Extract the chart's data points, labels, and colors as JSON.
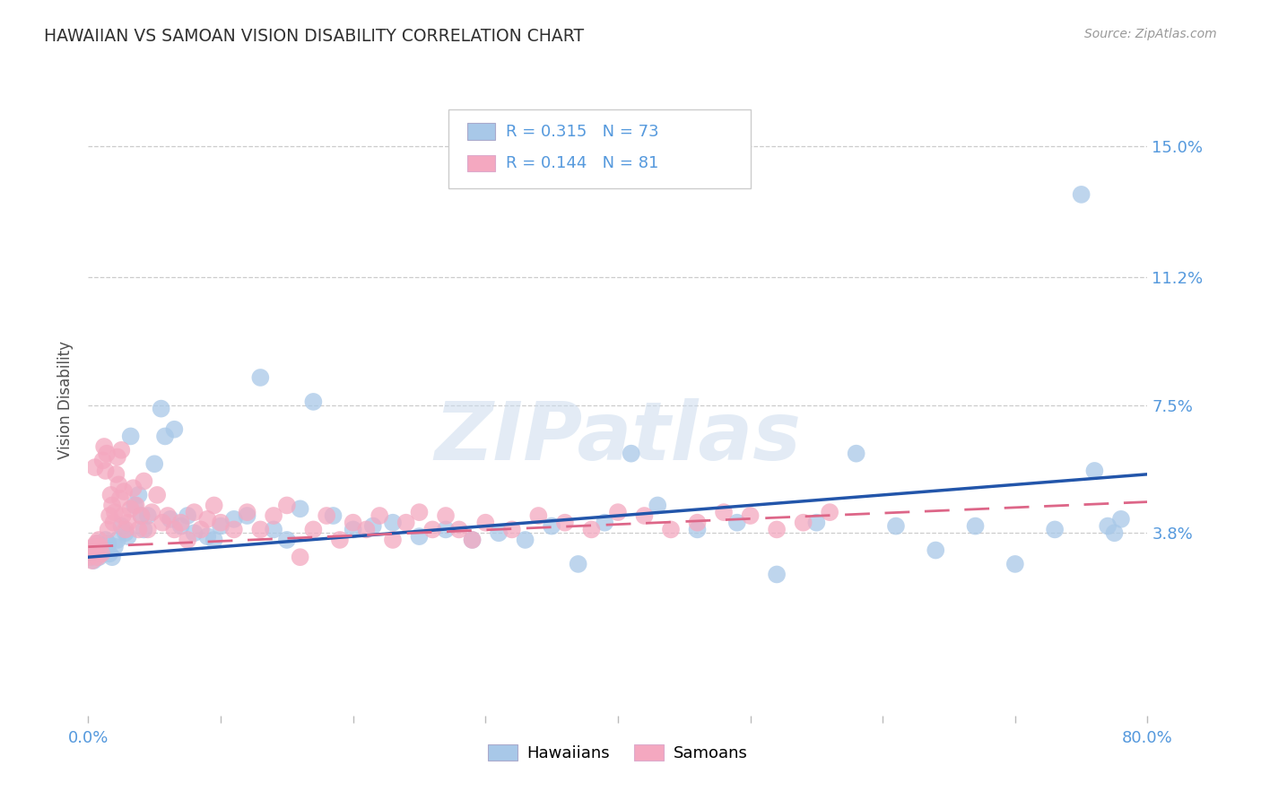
{
  "title": "HAWAIIAN VS SAMOAN VISION DISABILITY CORRELATION CHART",
  "source": "Source: ZipAtlas.com",
  "ylabel": "Vision Disability",
  "watermark": "ZIPatlas",
  "xlim": [
    0.0,
    0.8
  ],
  "ylim": [
    -0.015,
    0.168
  ],
  "xticks": [
    0.0,
    0.1,
    0.2,
    0.3,
    0.4,
    0.5,
    0.6,
    0.7,
    0.8
  ],
  "xticklabels": [
    "0.0%",
    "",
    "",
    "",
    "",
    "",
    "",
    "",
    "80.0%"
  ],
  "ytick_values": [
    0.038,
    0.075,
    0.112,
    0.15
  ],
  "ytick_labels": [
    "3.8%",
    "7.5%",
    "11.2%",
    "15.0%"
  ],
  "hawaiian_R": 0.315,
  "hawaiian_N": 73,
  "samoan_R": 0.144,
  "samoan_N": 81,
  "hawaiian_color": "#a8c8e8",
  "samoan_color": "#f4a8c0",
  "hawaiian_line_color": "#2255aa",
  "samoan_line_color": "#dd6688",
  "tick_color": "#5599dd",
  "title_color": "#303030",
  "grid_color": "#cccccc",
  "hawaiian_x": [
    0.002,
    0.003,
    0.004,
    0.005,
    0.006,
    0.007,
    0.008,
    0.009,
    0.01,
    0.011,
    0.012,
    0.013,
    0.015,
    0.016,
    0.018,
    0.02,
    0.022,
    0.025,
    0.028,
    0.03,
    0.032,
    0.035,
    0.038,
    0.04,
    0.042,
    0.045,
    0.05,
    0.055,
    0.058,
    0.062,
    0.065,
    0.07,
    0.075,
    0.08,
    0.09,
    0.095,
    0.1,
    0.11,
    0.12,
    0.13,
    0.14,
    0.15,
    0.16,
    0.17,
    0.185,
    0.2,
    0.215,
    0.23,
    0.25,
    0.27,
    0.29,
    0.31,
    0.33,
    0.35,
    0.37,
    0.39,
    0.41,
    0.43,
    0.46,
    0.49,
    0.52,
    0.55,
    0.58,
    0.61,
    0.64,
    0.67,
    0.7,
    0.73,
    0.75,
    0.76,
    0.77,
    0.775,
    0.78
  ],
  "hawaiian_y": [
    0.031,
    0.033,
    0.03,
    0.034,
    0.032,
    0.035,
    0.031,
    0.033,
    0.032,
    0.034,
    0.033,
    0.036,
    0.035,
    0.032,
    0.031,
    0.034,
    0.036,
    0.04,
    0.038,
    0.037,
    0.066,
    0.046,
    0.049,
    0.043,
    0.039,
    0.043,
    0.058,
    0.074,
    0.066,
    0.042,
    0.068,
    0.04,
    0.043,
    0.038,
    0.037,
    0.036,
    0.04,
    0.042,
    0.043,
    0.083,
    0.039,
    0.036,
    0.045,
    0.076,
    0.043,
    0.039,
    0.04,
    0.041,
    0.037,
    0.039,
    0.036,
    0.038,
    0.036,
    0.04,
    0.029,
    0.041,
    0.061,
    0.046,
    0.039,
    0.041,
    0.026,
    0.041,
    0.061,
    0.04,
    0.033,
    0.04,
    0.029,
    0.039,
    0.136,
    0.056,
    0.04,
    0.038,
    0.042
  ],
  "samoan_x": [
    0.001,
    0.002,
    0.003,
    0.004,
    0.005,
    0.006,
    0.007,
    0.008,
    0.009,
    0.01,
    0.011,
    0.012,
    0.013,
    0.014,
    0.015,
    0.016,
    0.017,
    0.018,
    0.019,
    0.02,
    0.021,
    0.022,
    0.023,
    0.024,
    0.025,
    0.026,
    0.027,
    0.028,
    0.03,
    0.032,
    0.034,
    0.036,
    0.038,
    0.04,
    0.042,
    0.045,
    0.048,
    0.052,
    0.056,
    0.06,
    0.065,
    0.07,
    0.075,
    0.08,
    0.085,
    0.09,
    0.095,
    0.1,
    0.11,
    0.12,
    0.13,
    0.14,
    0.15,
    0.16,
    0.17,
    0.18,
    0.19,
    0.2,
    0.21,
    0.22,
    0.23,
    0.24,
    0.25,
    0.26,
    0.27,
    0.28,
    0.29,
    0.3,
    0.32,
    0.34,
    0.36,
    0.38,
    0.4,
    0.42,
    0.44,
    0.46,
    0.48,
    0.5,
    0.52,
    0.54,
    0.56
  ],
  "samoan_y": [
    0.031,
    0.033,
    0.03,
    0.034,
    0.057,
    0.035,
    0.031,
    0.036,
    0.034,
    0.032,
    0.059,
    0.063,
    0.056,
    0.061,
    0.039,
    0.043,
    0.049,
    0.046,
    0.041,
    0.044,
    0.055,
    0.06,
    0.052,
    0.048,
    0.062,
    0.043,
    0.05,
    0.039,
    0.041,
    0.045,
    0.051,
    0.046,
    0.039,
    0.043,
    0.053,
    0.039,
    0.044,
    0.049,
    0.041,
    0.043,
    0.039,
    0.041,
    0.036,
    0.044,
    0.039,
    0.042,
    0.046,
    0.041,
    0.039,
    0.044,
    0.039,
    0.043,
    0.046,
    0.031,
    0.039,
    0.043,
    0.036,
    0.041,
    0.039,
    0.043,
    0.036,
    0.041,
    0.044,
    0.039,
    0.043,
    0.039,
    0.036,
    0.041,
    0.039,
    0.043,
    0.041,
    0.039,
    0.044,
    0.043,
    0.039,
    0.041,
    0.044,
    0.043,
    0.039,
    0.041,
    0.044
  ]
}
